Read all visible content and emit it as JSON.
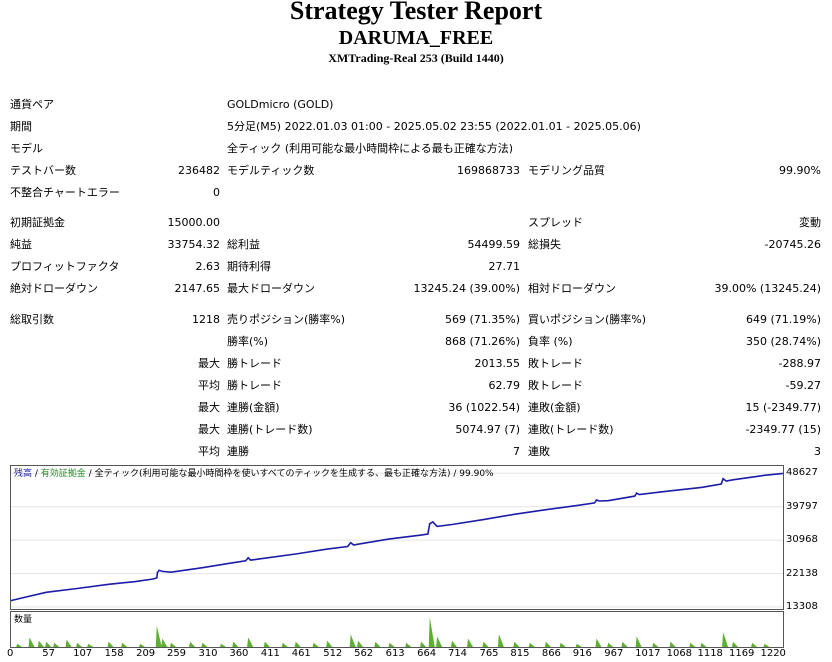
{
  "report": {
    "title": "Strategy Tester Report",
    "ea_name": "DARUMA_FREE",
    "server": "XMTrading-Real 253 (Build 1440)"
  },
  "rows": [
    {
      "cells": [
        {
          "text": "通貨ペア",
          "x": 10
        },
        {
          "text": "GOLDmicro (GOLD)",
          "x": 227
        }
      ],
      "y": 98
    },
    {
      "cells": [
        {
          "text": "期間",
          "x": 10
        },
        {
          "text": "5分足(M5) 2022.01.03 01:00 - 2025.05.02 23:55 (2022.01.01 - 2025.05.06)",
          "x": 227
        }
      ],
      "y": 120
    },
    {
      "cells": [
        {
          "text": "モデル",
          "x": 10
        },
        {
          "text": "全ティック (利用可能な最小時間枠による最も正確な方法)",
          "x": 227
        }
      ],
      "y": 142
    },
    {
      "cells": [
        {
          "text": "テストバー数",
          "x": 10
        },
        {
          "text": "236482",
          "r": 220
        },
        {
          "text": "モデルティック数",
          "x": 227
        },
        {
          "text": "169868733",
          "r": 520
        },
        {
          "text": "モデリング品質",
          "x": 528
        },
        {
          "text": "99.90%",
          "r": 821
        }
      ],
      "y": 164
    },
    {
      "cells": [
        {
          "text": "不整合チャートエラー",
          "x": 10
        },
        {
          "text": "0",
          "r": 220
        }
      ],
      "y": 186
    },
    {
      "cells": [
        {
          "text": "初期証拠金",
          "x": 10
        },
        {
          "text": "15000.00",
          "r": 220
        },
        {
          "text": "スプレッド",
          "x": 528
        },
        {
          "text": "変動",
          "r": 821
        }
      ],
      "y": 216
    },
    {
      "cells": [
        {
          "text": "純益",
          "x": 10
        },
        {
          "text": "33754.32",
          "r": 220
        },
        {
          "text": "総利益",
          "x": 227
        },
        {
          "text": "54499.59",
          "r": 520
        },
        {
          "text": "総損失",
          "x": 528
        },
        {
          "text": "-20745.26",
          "r": 821
        }
      ],
      "y": 238
    },
    {
      "cells": [
        {
          "text": "プロフィットファクタ",
          "x": 10
        },
        {
          "text": "2.63",
          "r": 220
        },
        {
          "text": "期待利得",
          "x": 227
        },
        {
          "text": "27.71",
          "r": 520
        }
      ],
      "y": 260
    },
    {
      "cells": [
        {
          "text": "絶対ドローダウン",
          "x": 10
        },
        {
          "text": "2147.65",
          "r": 220
        },
        {
          "text": "最大ドローダウン",
          "x": 227
        },
        {
          "text": "13245.24 (39.00%)",
          "r": 520
        },
        {
          "text": "相対ドローダウン",
          "x": 528
        },
        {
          "text": "39.00% (13245.24)",
          "r": 821
        }
      ],
      "y": 282
    },
    {
      "cells": [
        {
          "text": "総取引数",
          "x": 10
        },
        {
          "text": "1218",
          "r": 220
        },
        {
          "text": "売りポジション(勝率%)",
          "x": 227
        },
        {
          "text": "569 (71.35%)",
          "r": 520
        },
        {
          "text": "買いポジション(勝率%)",
          "x": 528
        },
        {
          "text": "649 (71.19%)",
          "r": 821
        }
      ],
      "y": 313
    },
    {
      "cells": [
        {
          "text": "勝率(%)",
          "x": 227
        },
        {
          "text": "868 (71.26%)",
          "r": 520
        },
        {
          "text": "負率 (%)",
          "x": 528
        },
        {
          "text": "350 (28.74%)",
          "r": 821
        }
      ],
      "y": 335
    },
    {
      "cells": [
        {
          "text": "最大",
          "r": 220
        },
        {
          "text": "勝トレード",
          "x": 227
        },
        {
          "text": "2013.55",
          "r": 520
        },
        {
          "text": "敗トレード",
          "x": 528
        },
        {
          "text": "-288.97",
          "r": 821
        }
      ],
      "y": 357
    },
    {
      "cells": [
        {
          "text": "平均",
          "r": 220
        },
        {
          "text": "勝トレード",
          "x": 227
        },
        {
          "text": "62.79",
          "r": 520
        },
        {
          "text": "敗トレード",
          "x": 528
        },
        {
          "text": "-59.27",
          "r": 821
        }
      ],
      "y": 379
    },
    {
      "cells": [
        {
          "text": "最大",
          "r": 220
        },
        {
          "text": "連勝(金額)",
          "x": 227
        },
        {
          "text": "36 (1022.54)",
          "r": 520
        },
        {
          "text": "連敗(金額)",
          "x": 528
        },
        {
          "text": "15 (-2349.77)",
          "r": 821
        }
      ],
      "y": 401
    },
    {
      "cells": [
        {
          "text": "最大",
          "r": 220
        },
        {
          "text": "連勝(トレード数)",
          "x": 227
        },
        {
          "text": "5074.97 (7)",
          "r": 520
        },
        {
          "text": "連敗(トレード数)",
          "x": 528
        },
        {
          "text": "-2349.77 (15)",
          "r": 821
        }
      ],
      "y": 423
    },
    {
      "cells": [
        {
          "text": "平均",
          "r": 220
        },
        {
          "text": "連勝",
          "x": 227
        },
        {
          "text": "7",
          "r": 520
        },
        {
          "text": "連敗",
          "x": 528
        },
        {
          "text": "3",
          "r": 821
        }
      ],
      "y": 445
    }
  ],
  "chart_data": {
    "type": "line",
    "legend": {
      "balance": "残高",
      "sep1": " / ",
      "equity": "有効証拠金",
      "sep2": " / ",
      "model": "全ティック(利用可能な最小時間枠を使いすべてのティックを生成する、最も正確な方法)",
      "sep3": " / ",
      "quality": "99.90%"
    },
    "volume_label": "数量",
    "y_ticks": [
      "48627",
      "39797",
      "30968",
      "22138",
      "13308"
    ],
    "x_ticks": [
      "0",
      "57",
      "107",
      "158",
      "209",
      "259",
      "310",
      "360",
      "411",
      "461",
      "512",
      "562",
      "613",
      "664",
      "714",
      "765",
      "815",
      "866",
      "916",
      "967",
      "1017",
      "1068",
      "1118",
      "1169",
      "1220"
    ],
    "ylim": [
      13308,
      49500
    ],
    "xlim": [
      0,
      1250
    ],
    "balance": [
      [
        0,
        15000
      ],
      [
        20,
        15800
      ],
      [
        57,
        17200
      ],
      [
        107,
        18200
      ],
      [
        158,
        19300
      ],
      [
        200,
        20000
      ],
      [
        230,
        20700
      ],
      [
        236,
        21000
      ],
      [
        237,
        22400
      ],
      [
        240,
        23000
      ],
      [
        245,
        22700
      ],
      [
        259,
        22500
      ],
      [
        310,
        23700
      ],
      [
        360,
        25000
      ],
      [
        380,
        25500
      ],
      [
        384,
        26300
      ],
      [
        388,
        25700
      ],
      [
        411,
        26200
      ],
      [
        461,
        27300
      ],
      [
        512,
        28600
      ],
      [
        545,
        29300
      ],
      [
        550,
        30300
      ],
      [
        555,
        29700
      ],
      [
        562,
        29900
      ],
      [
        613,
        31300
      ],
      [
        664,
        32300
      ],
      [
        675,
        32600
      ],
      [
        678,
        35300
      ],
      [
        683,
        35800
      ],
      [
        690,
        34600
      ],
      [
        714,
        35100
      ],
      [
        765,
        36400
      ],
      [
        815,
        37800
      ],
      [
        866,
        39000
      ],
      [
        916,
        40100
      ],
      [
        945,
        40800
      ],
      [
        948,
        41600
      ],
      [
        952,
        41300
      ],
      [
        967,
        41400
      ],
      [
        1010,
        42600
      ],
      [
        1013,
        43400
      ],
      [
        1017,
        43000
      ],
      [
        1068,
        44000
      ],
      [
        1118,
        44900
      ],
      [
        1150,
        45800
      ],
      [
        1153,
        47200
      ],
      [
        1158,
        46600
      ],
      [
        1169,
        46900
      ],
      [
        1220,
        48100
      ],
      [
        1250,
        48600
      ]
    ],
    "volume_bars": [
      [
        10,
        3
      ],
      [
        30,
        9
      ],
      [
        45,
        6
      ],
      [
        57,
        5
      ],
      [
        70,
        4
      ],
      [
        90,
        7
      ],
      [
        107,
        4
      ],
      [
        125,
        3
      ],
      [
        158,
        5
      ],
      [
        180,
        4
      ],
      [
        209,
        3
      ],
      [
        236,
        20
      ],
      [
        245,
        8
      ],
      [
        259,
        4
      ],
      [
        290,
        5
      ],
      [
        310,
        4
      ],
      [
        340,
        3
      ],
      [
        360,
        5
      ],
      [
        384,
        9
      ],
      [
        411,
        5
      ],
      [
        440,
        4
      ],
      [
        461,
        5
      ],
      [
        490,
        4
      ],
      [
        512,
        6
      ],
      [
        550,
        12
      ],
      [
        562,
        6
      ],
      [
        590,
        5
      ],
      [
        613,
        4
      ],
      [
        640,
        4
      ],
      [
        664,
        5
      ],
      [
        678,
        28
      ],
      [
        690,
        10
      ],
      [
        714,
        6
      ],
      [
        740,
        8
      ],
      [
        765,
        5
      ],
      [
        790,
        12
      ],
      [
        815,
        5
      ],
      [
        840,
        4
      ],
      [
        866,
        5
      ],
      [
        890,
        4
      ],
      [
        916,
        3
      ],
      [
        948,
        8
      ],
      [
        967,
        4
      ],
      [
        990,
        5
      ],
      [
        1013,
        10
      ],
      [
        1040,
        4
      ],
      [
        1068,
        5
      ],
      [
        1100,
        4
      ],
      [
        1118,
        4
      ],
      [
        1153,
        14
      ],
      [
        1169,
        5
      ],
      [
        1200,
        4
      ],
      [
        1220,
        3
      ]
    ]
  },
  "colors": {
    "balance_line": "#1c1ca8",
    "volume_bar": "#5cb030",
    "legend_green": "#2e8b2e",
    "legend_blue": "#1c1ca8"
  }
}
